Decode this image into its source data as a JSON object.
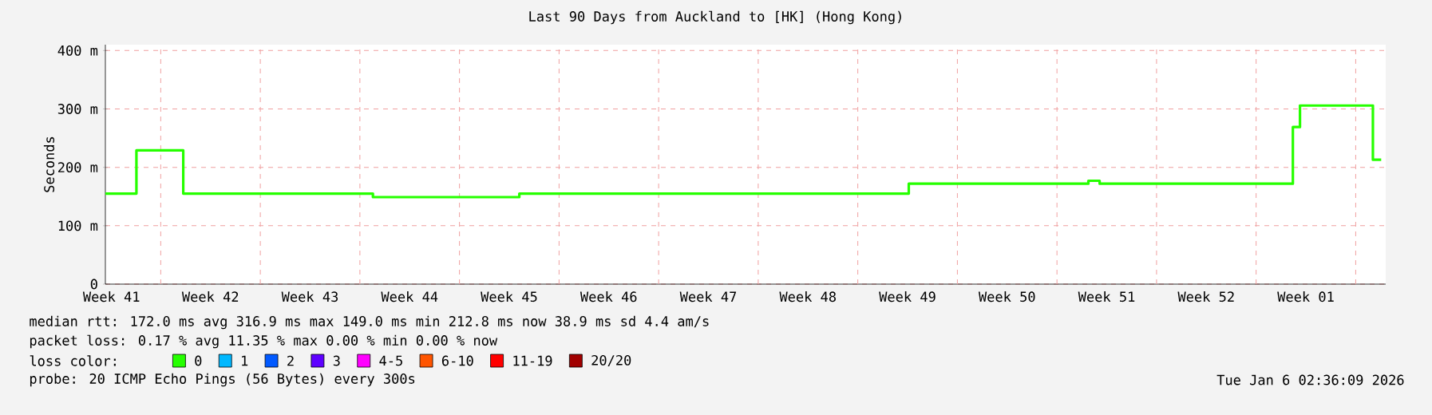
{
  "chart_data": {
    "type": "step",
    "title": "Last 90 Days from Auckland to [HK] (Hong Kong)",
    "ylabel": "Seconds",
    "xlim": [
      "2025-10-08T02:36",
      "2026-01-06T02:36"
    ],
    "xticks": [
      {
        "value": "2025-10-08T13:00",
        "label": "Week 41"
      },
      {
        "value": "2025-10-15T12:00",
        "label": "Week 42"
      },
      {
        "value": "2025-10-22T12:00",
        "label": "Week 43"
      },
      {
        "value": "2025-10-29T12:00",
        "label": "Week 44"
      },
      {
        "value": "2025-11-05T12:00",
        "label": "Week 45"
      },
      {
        "value": "2025-11-12T12:00",
        "label": "Week 46"
      },
      {
        "value": "2025-11-19T12:00",
        "label": "Week 47"
      },
      {
        "value": "2025-11-26T12:00",
        "label": "Week 48"
      },
      {
        "value": "2025-12-03T12:00",
        "label": "Week 49"
      },
      {
        "value": "2025-12-10T12:00",
        "label": "Week 50"
      },
      {
        "value": "2025-12-17T12:00",
        "label": "Week 51"
      },
      {
        "value": "2025-12-24T12:00",
        "label": "Week 52"
      },
      {
        "value": "2025-12-31T12:00",
        "label": "Week 01"
      },
      {
        "value": "2025-10-12",
        "label": null
      },
      {
        "value": "2025-10-19",
        "label": null
      },
      {
        "value": "2025-10-26",
        "label": null
      },
      {
        "value": "2025-11-02",
        "label": null
      },
      {
        "value": "2025-11-09",
        "label": null
      },
      {
        "value": "2025-11-16",
        "label": null
      },
      {
        "value": "2025-11-23",
        "label": null
      },
      {
        "value": "2025-11-30",
        "label": null
      },
      {
        "value": "2025-12-07",
        "label": null
      },
      {
        "value": "2025-12-14",
        "label": null
      },
      {
        "value": "2025-12-21",
        "label": null
      },
      {
        "value": "2025-12-28",
        "label": null
      },
      {
        "value": "2026-01-04",
        "label": null
      }
    ],
    "ylim": [
      0,
      410
    ],
    "yticks": [
      0,
      {
        "value": 100,
        "label": "100 m"
      },
      {
        "value": 200,
        "label": "200 m"
      },
      {
        "value": 300,
        "label": "300 m"
      },
      {
        "value": 400,
        "label": "400 m"
      }
    ],
    "grid": true,
    "legend": "bottom left",
    "legend_title": "loss color:",
    "series": [
      {
        "name": "0",
        "color": "#26ff00",
        "x": [
          "2025-10-08T02:36",
          "2025-10-10T07:00",
          "2025-10-13T14:00",
          "2025-10-26T22:00",
          "2025-11-06T05:00",
          "2025-12-03T14:00",
          "2025-12-16T05:00",
          "2025-12-17T00:00",
          "2025-12-30T14:00",
          "2025-12-31T02:00",
          "2026-01-05T05:00",
          "2026-01-05T19:00"
        ],
        "values": [
          155,
          229,
          155,
          149,
          155,
          172,
          177,
          172,
          269,
          306,
          213,
          213
        ]
      },
      {
        "name": "1",
        "color": "#00b8ff"
      },
      {
        "name": "2",
        "color": "#0059ff"
      },
      {
        "name": "3",
        "color": "#5e00ff"
      },
      {
        "name": "4-5",
        "color": "#ff00ff"
      },
      {
        "name": "6-10",
        "color": "#ff5500"
      },
      {
        "name": "11-19",
        "color": "#ff0000"
      },
      {
        "name": "20/20",
        "color": "#a10000"
      }
    ],
    "annotations": [
      "median rtt:  172.0 ms avg  316.9 ms max  149.0 ms min  212.8 ms now  38.9 ms sd  4.4   am/s",
      "packet loss: 0.17 % avg  11.35 % max  0.00 % min  0.00 % now",
      "probe:       20 ICMP Echo Pings (56 Bytes) every 300s",
      "Tue Jan  6 02:36:09 2026"
    ]
  }
}
